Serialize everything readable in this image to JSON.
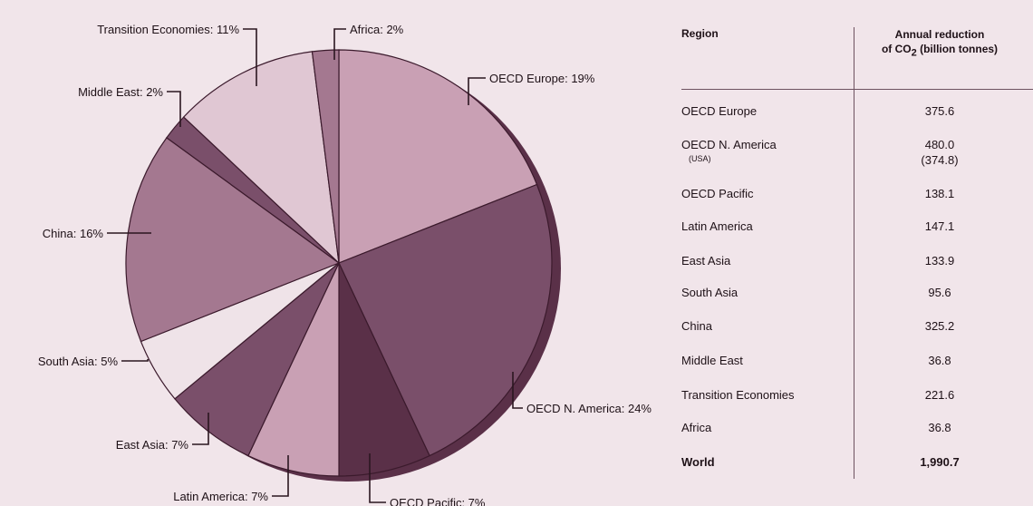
{
  "chart_data": [
    {
      "type": "pie",
      "slices": [
        {
          "label": "OECD Europe: 19%",
          "value": 19,
          "color": "#c9a0b4"
        },
        {
          "label": "OECD N. America: 24%",
          "value": 24,
          "color": "#7a4f6a"
        },
        {
          "label": "OECD Pacific: 7%",
          "value": 7,
          "color": "#5a3048"
        },
        {
          "label": "Latin America: 7%",
          "value": 7,
          "color": "#c9a0b4"
        },
        {
          "label": "East Asia: 7%",
          "value": 7,
          "color": "#7a4f6a"
        },
        {
          "label": "South Asia: 5%",
          "value": 5,
          "color": "#efe3e8"
        },
        {
          "label": "China: 16%",
          "value": 16,
          "color": "#a47890"
        },
        {
          "label": "Middle East: 2%",
          "value": 2,
          "color": "#7a4f6a"
        },
        {
          "label": "Transition Economies: 11%",
          "value": 11,
          "color": "#e0c7d3"
        },
        {
          "label": "Africa: 2%",
          "value": 2,
          "color": "#a47890"
        }
      ]
    },
    {
      "type": "table",
      "columns": [
        "Region",
        "Annual reduction",
        "of CO",
        "2",
        " (billion tonnes)"
      ],
      "rows": [
        {
          "region": "OECD Europe",
          "value": "375.6"
        },
        {
          "region": "OECD N. America",
          "sub": "(USA)",
          "value": "480.0",
          "value2": "(374.8)"
        },
        {
          "region": "OECD Pacific",
          "value": "138.1"
        },
        {
          "region": "Latin America",
          "value": "147.1"
        },
        {
          "region": "East Asia",
          "value": "133.9"
        },
        {
          "region": "South Asia",
          "value": "95.6"
        },
        {
          "region": "China",
          "value": "325.2"
        },
        {
          "region": "Middle East",
          "value": "36.8"
        },
        {
          "region": "Transition Economies",
          "value": "221.6"
        },
        {
          "region": "Africa",
          "value": "36.8"
        },
        {
          "region": "World",
          "value": "1,990.7"
        }
      ]
    }
  ]
}
